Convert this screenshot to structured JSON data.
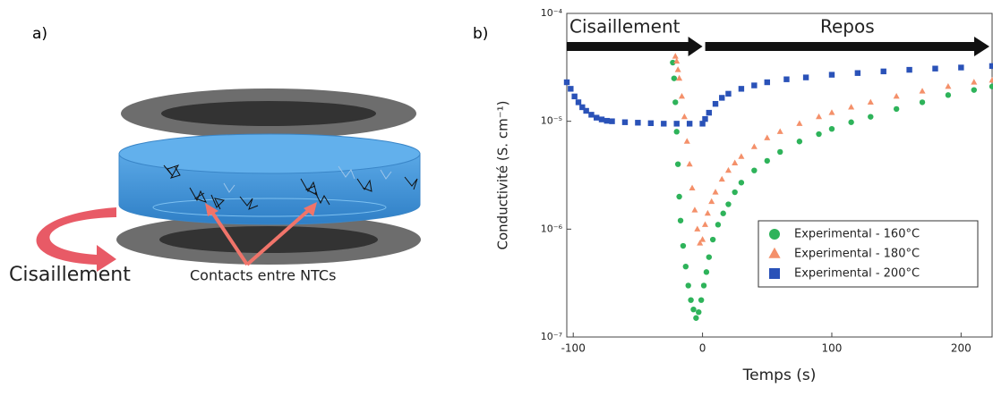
{
  "diagram": {
    "label": "a)",
    "shear": "Cisaillement",
    "contacts": "Contacts entre NTCs"
  },
  "chart_data": {
    "type": "scatter",
    "label": "b)",
    "xlabel": "Temps (s)",
    "ylabel": "Conductivité (S. cm⁻¹)",
    "annotations": [
      "Cisaillement",
      "Repos"
    ],
    "xlim": [
      -105,
      224
    ],
    "xticks": [
      -100,
      0,
      100,
      200
    ],
    "ylim": [
      1e-07,
      0.0001
    ],
    "log_y": true,
    "yticks": [
      {
        "value": 1e-07,
        "label": "10⁻⁷"
      },
      {
        "value": 1e-06,
        "label": "10⁻⁶"
      },
      {
        "value": 1e-05,
        "label": "10⁻⁵"
      },
      {
        "value": 0.0001,
        "label": "10⁻⁴"
      }
    ],
    "legend": "lower right",
    "series": [
      {
        "name": "Experimental - 160°C",
        "color": "#2eb35a",
        "marker": "circle",
        "x": [
          -23,
          -22,
          -21,
          -20,
          -19,
          -18,
          -17,
          -15,
          -13,
          -11,
          -9,
          -7,
          -5,
          -3,
          -1,
          1,
          3,
          5,
          8,
          12,
          16,
          20,
          25,
          30,
          40,
          50,
          60,
          75,
          90,
          100,
          115,
          130,
          150,
          170,
          190,
          210,
          224
        ],
        "values": [
          3.5e-05,
          2.5e-05,
          1.5e-05,
          8e-06,
          4e-06,
          2e-06,
          1.2e-06,
          7e-07,
          4.5e-07,
          3e-07,
          2.2e-07,
          1.8e-07,
          1.5e-07,
          1.7e-07,
          2.2e-07,
          3e-07,
          4e-07,
          5.5e-07,
          8e-07,
          1.1e-06,
          1.4e-06,
          1.7e-06,
          2.2e-06,
          2.7e-06,
          3.5e-06,
          4.3e-06,
          5.2e-06,
          6.5e-06,
          7.6e-06,
          8.5e-06,
          9.8e-06,
          1.1e-05,
          1.3e-05,
          1.5e-05,
          1.75e-05,
          1.95e-05,
          2.1e-05
        ]
      },
      {
        "name": "Experimental - 180°C",
        "color": "#f4906a",
        "marker": "triangle",
        "x": [
          -21,
          -20,
          -19,
          -18,
          -16,
          -14,
          -12,
          -10,
          -8,
          -6,
          -4,
          -2,
          0,
          2,
          4,
          7,
          10,
          15,
          20,
          25,
          30,
          40,
          50,
          60,
          75,
          90,
          100,
          115,
          130,
          150,
          170,
          190,
          210,
          224
        ],
        "values": [
          4e-05,
          3.6e-05,
          3e-05,
          2.5e-05,
          1.7e-05,
          1.1e-05,
          6.5e-06,
          4e-06,
          2.4e-06,
          1.5e-06,
          1e-06,
          7.4e-07,
          8e-07,
          1.1e-06,
          1.4e-06,
          1.8e-06,
          2.2e-06,
          2.9e-06,
          3.5e-06,
          4.1e-06,
          4.7e-06,
          5.8e-06,
          7e-06,
          8e-06,
          9.5e-06,
          1.1e-05,
          1.2e-05,
          1.35e-05,
          1.5e-05,
          1.7e-05,
          1.9e-05,
          2.1e-05,
          2.3e-05,
          2.4e-05
        ]
      },
      {
        "name": "Experimental - 200°C",
        "color": "#2a52b8",
        "marker": "square",
        "x": [
          -105,
          -102,
          -99,
          -96,
          -93,
          -90,
          -86,
          -82,
          -78,
          -74,
          -70,
          -60,
          -50,
          -40,
          -30,
          -20,
          -10,
          0,
          2,
          5,
          10,
          15,
          20,
          30,
          40,
          50,
          65,
          80,
          100,
          120,
          140,
          160,
          180,
          200,
          224
        ],
        "values": [
          2.3e-05,
          2e-05,
          1.7e-05,
          1.5e-05,
          1.35e-05,
          1.25e-05,
          1.15e-05,
          1.08e-05,
          1.04e-05,
          1.01e-05,
          1e-05,
          9.8e-06,
          9.7e-06,
          9.6e-06,
          9.5e-06,
          9.5e-06,
          9.5e-06,
          9.5e-06,
          1.05e-05,
          1.2e-05,
          1.45e-05,
          1.65e-05,
          1.8e-05,
          2e-05,
          2.15e-05,
          2.3e-05,
          2.45e-05,
          2.55e-05,
          2.7e-05,
          2.8e-05,
          2.9e-05,
          3e-05,
          3.08e-05,
          3.15e-05,
          3.25e-05
        ]
      }
    ]
  }
}
